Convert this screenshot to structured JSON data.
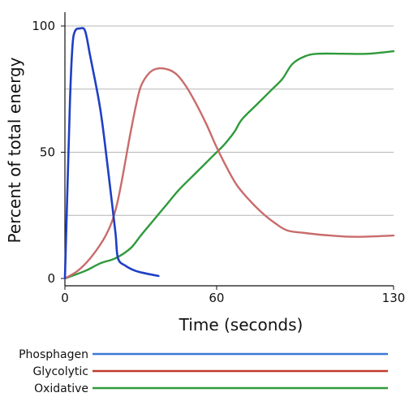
{
  "chart_data": {
    "type": "line",
    "xlabel": "Time (seconds)",
    "ylabel": "Percent of total energy",
    "xlim": [
      0,
      130
    ],
    "ylim": [
      0,
      100
    ],
    "x_ticks": [
      0,
      60,
      130
    ],
    "y_ticks": [
      0,
      50,
      100
    ],
    "grid": "horizontal",
    "legend": "bottom",
    "series": [
      {
        "name": "Phosphagen",
        "color": "#1f3fc4",
        "legend_color": "#3a78d6",
        "points": [
          [
            0,
            0
          ],
          [
            2,
            70
          ],
          [
            3,
            92
          ],
          [
            4,
            98
          ],
          [
            6,
            99
          ],
          [
            8,
            98
          ],
          [
            10,
            88
          ],
          [
            12,
            78
          ],
          [
            14,
            67
          ],
          [
            16,
            52
          ],
          [
            18,
            35
          ],
          [
            20,
            18
          ],
          [
            21,
            8
          ],
          [
            24,
            5
          ],
          [
            28,
            3
          ],
          [
            32,
            2
          ],
          [
            37,
            1
          ]
        ]
      },
      {
        "name": "Glycolytic",
        "color": "#c96b6b",
        "legend_color": "#c0392b",
        "points": [
          [
            0,
            0
          ],
          [
            5,
            3
          ],
          [
            10,
            8
          ],
          [
            15,
            15
          ],
          [
            18,
            21
          ],
          [
            20,
            27
          ],
          [
            22,
            36
          ],
          [
            24,
            47
          ],
          [
            26,
            58
          ],
          [
            28,
            68
          ],
          [
            30,
            76
          ],
          [
            33,
            81
          ],
          [
            36,
            83
          ],
          [
            40,
            83
          ],
          [
            44,
            81
          ],
          [
            48,
            76
          ],
          [
            52,
            69
          ],
          [
            56,
            61
          ],
          [
            60,
            52
          ],
          [
            64,
            44
          ],
          [
            68,
            37
          ],
          [
            73,
            31
          ],
          [
            78,
            26
          ],
          [
            83,
            22
          ],
          [
            88,
            19
          ],
          [
            95,
            18
          ],
          [
            105,
            17
          ],
          [
            115,
            16.5
          ],
          [
            130,
            17
          ]
        ]
      },
      {
        "name": "Oxidative",
        "color": "#2e9a3a",
        "legend_color": "#2e9a3a",
        "points": [
          [
            0,
            0
          ],
          [
            8,
            3
          ],
          [
            14,
            6
          ],
          [
            20,
            8
          ],
          [
            26,
            12
          ],
          [
            30,
            17
          ],
          [
            35,
            23
          ],
          [
            40,
            29
          ],
          [
            45,
            35
          ],
          [
            52,
            42
          ],
          [
            58,
            48
          ],
          [
            63,
            53
          ],
          [
            67,
            58
          ],
          [
            70,
            63
          ],
          [
            76,
            69
          ],
          [
            82,
            75
          ],
          [
            86,
            79
          ],
          [
            90,
            85
          ],
          [
            95,
            88
          ],
          [
            100,
            89
          ],
          [
            110,
            89
          ],
          [
            120,
            89
          ],
          [
            130,
            90
          ]
        ]
      }
    ]
  }
}
